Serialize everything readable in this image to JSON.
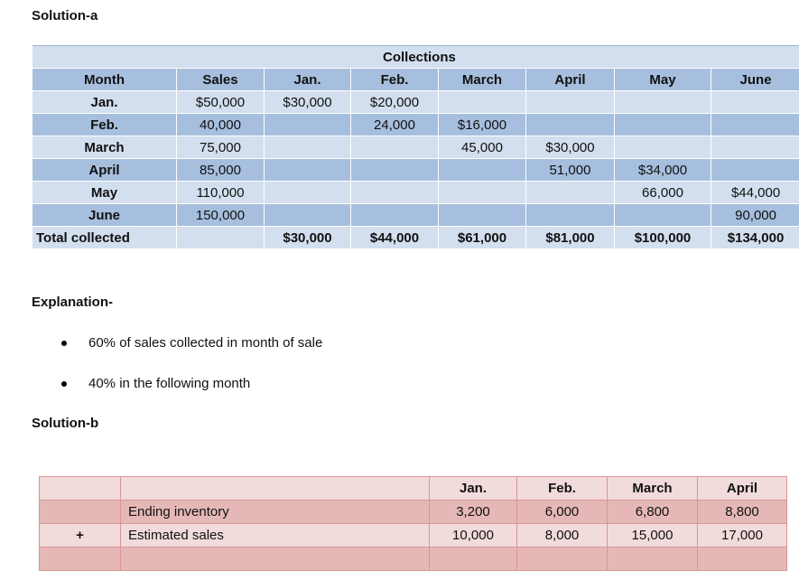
{
  "solution_a_heading": "Solution-a",
  "collections_table": {
    "group_header": "Collections",
    "headers": [
      "Month",
      "Sales",
      "Jan.",
      "Feb.",
      "March",
      "April",
      "May",
      "June"
    ],
    "rows": [
      [
        "Jan.",
        "$50,000",
        "$30,000",
        "$20,000",
        "",
        "",
        "",
        ""
      ],
      [
        "Feb.",
        "40,000",
        "",
        "24,000",
        "$16,000",
        "",
        "",
        ""
      ],
      [
        "March",
        "75,000",
        "",
        "",
        "45,000",
        "$30,000",
        "",
        ""
      ],
      [
        "April",
        "85,000",
        "",
        "",
        "",
        "51,000",
        "$34,000",
        ""
      ],
      [
        "May",
        "110,000",
        "",
        "",
        "",
        "",
        "66,000",
        "$44,000"
      ],
      [
        "June",
        "150,000",
        "",
        "",
        "",
        "",
        "",
        "90,000"
      ]
    ],
    "total": [
      "Total collected",
      "",
      "$30,000",
      "$44,000",
      "$61,000",
      "$81,000",
      "$100,000",
      "$134,000"
    ]
  },
  "explanation_heading": "Explanation-",
  "explanation_points": [
    "60% of sales collected in month of sale",
    "40% in the following month"
  ],
  "solution_b_heading": "Solution-b",
  "inventory_table": {
    "headers": [
      "",
      "",
      "Jan.",
      "Feb.",
      "March",
      "April"
    ],
    "rows": [
      [
        "",
        "Ending inventory",
        "3,200",
        "6,000",
        "6,800",
        "8,800"
      ],
      [
        "+",
        "Estimated sales",
        "10,000",
        "8,000",
        "15,000",
        "17,000"
      ],
      [
        "",
        "",
        "",
        "",
        "",
        ""
      ]
    ]
  }
}
